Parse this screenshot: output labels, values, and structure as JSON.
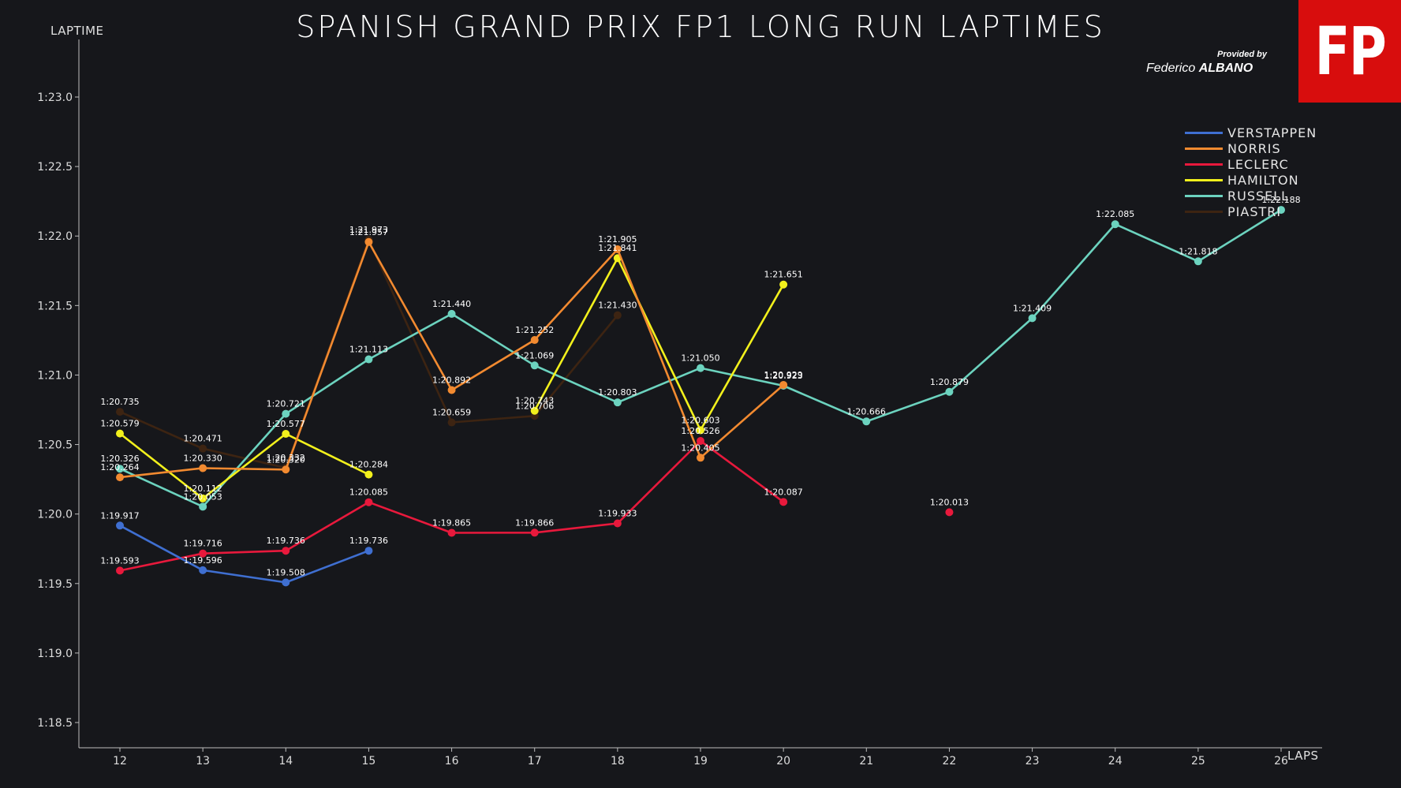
{
  "header": {
    "title": "SPANISH GRAND PRIX FP1 LONG RUN LAPTIMES",
    "credit_small": "Provided by",
    "credit_first": "Federico ",
    "credit_last": "ALBANO",
    "logo_text": "FP"
  },
  "chart_data": {
    "type": "line",
    "title": "SPANISH GRAND PRIX FP1 LONG RUN LAPTIMES",
    "xlabel": "LAPS",
    "ylabel": "LAPTIME",
    "xlim": [
      11.5,
      26.5
    ],
    "ylim": [
      78.1,
      83.4
    ],
    "x_ticks": [
      12,
      13,
      14,
      15,
      16,
      17,
      18,
      19,
      20,
      21,
      22,
      23,
      24,
      25,
      26
    ],
    "y_ticks": [
      78.5,
      79.0,
      79.5,
      80.0,
      80.5,
      81.0,
      81.5,
      82.0,
      82.5,
      83.0
    ],
    "y_tick_labels": [
      "1:18.5",
      "1:19.0",
      "1:19.5",
      "1:20.0",
      "1:20.5",
      "1:21.0",
      "1:21.5",
      "1:22.0",
      "1:22.5",
      "1:23.0"
    ],
    "legend_position": "top-right",
    "grid": false,
    "series": [
      {
        "name": "VERSTAPPEN",
        "color": "#3f6fd1",
        "points": [
          [
            12,
            79.917
          ],
          [
            13,
            79.596
          ],
          [
            14,
            79.508
          ],
          [
            15,
            79.736
          ]
        ],
        "labels": [
          "1:19.917",
          "1:19.596",
          "1:19.508",
          "1:19.736"
        ]
      },
      {
        "name": "NORRIS",
        "color": "#f28a30",
        "points": [
          [
            12,
            80.264
          ],
          [
            13,
            80.33
          ],
          [
            14,
            80.32
          ],
          [
            15,
            81.957
          ],
          [
            16,
            80.892
          ],
          [
            17,
            81.252
          ],
          [
            18,
            81.905
          ],
          [
            19,
            80.405
          ],
          [
            20,
            80.929
          ]
        ],
        "labels": [
          "1:20.264",
          "1:20.330",
          "1:20.320",
          "1:21.957",
          "1:20.892",
          "1:21.252",
          "1:21.905",
          "1:20.405",
          "1:20.929"
        ]
      },
      {
        "name": "LECLERC",
        "color": "#e8193c",
        "points": [
          [
            12,
            79.593
          ],
          [
            13,
            79.716
          ],
          [
            14,
            79.736
          ],
          [
            15,
            80.085
          ],
          [
            16,
            79.865
          ],
          [
            17,
            79.866
          ],
          [
            18,
            79.933
          ],
          [
            19,
            80.526
          ],
          [
            20,
            80.087
          ],
          [
            22,
            80.013
          ]
        ],
        "labels": [
          "1:19.593",
          "1:19.716",
          "1:19.736",
          "1:20.085",
          "1:19.865",
          "1:19.866",
          "1:19.933",
          "1:20.526",
          "1:20.087",
          "1:20.013"
        ],
        "breaks_after_index": [
          8
        ]
      },
      {
        "name": "HAMILTON",
        "color": "#f2f01c",
        "points": [
          [
            12,
            80.579
          ],
          [
            13,
            80.112
          ],
          [
            14,
            80.577
          ],
          [
            15,
            80.284
          ],
          [
            17,
            80.743
          ],
          [
            18,
            81.841
          ],
          [
            19,
            80.603
          ],
          [
            20,
            81.651
          ]
        ],
        "labels": [
          "1:20.579",
          "1:20.112",
          "1:20.577",
          "1:20.284",
          "1:20.743",
          "1:21.841",
          "1:20.603",
          "1:21.651"
        ],
        "breaks_after_index": [
          3
        ]
      },
      {
        "name": "RUSSELL",
        "color": "#6cd3bf",
        "points": [
          [
            12,
            80.326
          ],
          [
            13,
            80.053
          ],
          [
            14,
            80.721
          ],
          [
            15,
            81.113
          ],
          [
            16,
            81.44
          ],
          [
            17,
            81.069
          ],
          [
            18,
            80.803
          ],
          [
            19,
            81.05
          ],
          [
            20,
            80.923
          ],
          [
            21,
            80.666
          ],
          [
            22,
            80.879
          ],
          [
            23,
            81.409
          ],
          [
            24,
            82.085
          ],
          [
            25,
            81.818
          ],
          [
            26,
            82.188
          ]
        ],
        "labels": [
          "1:20.326",
          "1:20.053",
          "1:20.721",
          "1:21.113",
          "1:21.440",
          "1:21.069",
          "1:20.803",
          "1:21.050",
          "1:20.923",
          "1:20.666",
          "1:20.879",
          "1:21.409",
          "1:22.085",
          "1:21.818",
          "1:22.188"
        ]
      },
      {
        "name": "PIASTRI",
        "color": "#3d2412",
        "points": [
          [
            12,
            80.735
          ],
          [
            13,
            80.471
          ],
          [
            14,
            80.332
          ],
          [
            15,
            81.973
          ],
          [
            16,
            80.659
          ],
          [
            17,
            80.706
          ],
          [
            18,
            81.43
          ]
        ],
        "labels": [
          "1:20.735",
          "1:20.471",
          "1:20.332",
          "1:21.973",
          "1:20.659",
          "1:20.706",
          "1:21.430"
        ]
      }
    ]
  }
}
